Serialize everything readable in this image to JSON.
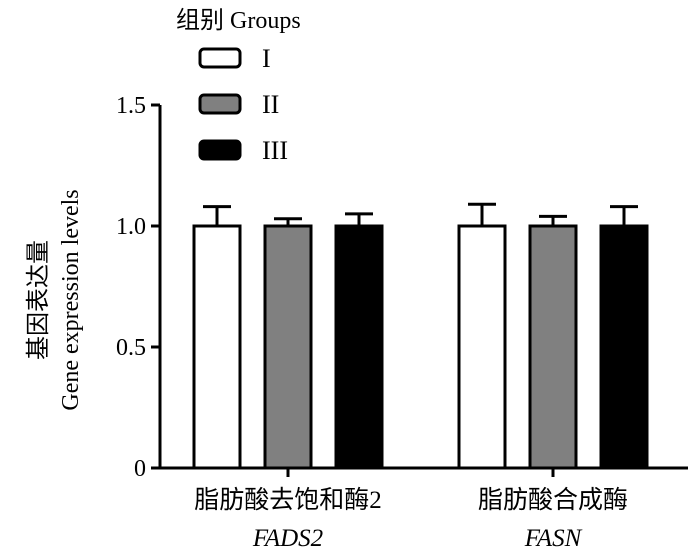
{
  "chart_data": {
    "type": "bar",
    "ylabel_cn": "基因表达量",
    "ylabel_en": "Gene expression levels",
    "ylim": [
      0,
      1.5
    ],
    "yticks": [
      "0",
      "0.5",
      "1.0",
      "1.5"
    ],
    "ytick_values": [
      0,
      0.5,
      1.0,
      1.5
    ],
    "legend": {
      "title": "组别 Groups",
      "placement": "top-left"
    },
    "categories": [
      {
        "cn": "脂肪酸去饱和酶2",
        "en": "FADS2"
      },
      {
        "cn": "脂肪酸合成酶",
        "en": "FASN"
      }
    ],
    "series": [
      {
        "name": "I",
        "color": "#ffffff",
        "values": [
          1.0,
          1.0
        ],
        "errors": [
          0.08,
          0.09
        ]
      },
      {
        "name": "II",
        "color": "#808080",
        "values": [
          1.0,
          1.0
        ],
        "errors": [
          0.03,
          0.04
        ]
      },
      {
        "name": "III",
        "color": "#000000",
        "values": [
          1.0,
          1.0
        ],
        "errors": [
          0.05,
          0.08
        ]
      }
    ],
    "grid": false
  }
}
